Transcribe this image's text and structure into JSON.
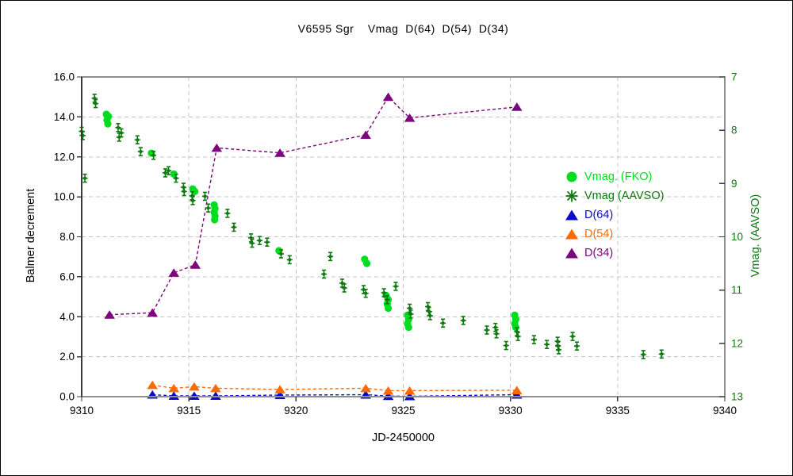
{
  "chart_data": {
    "type": "scatter",
    "title": "V6595 Sgr    Vmag  D(64)  D(54)  D(34)",
    "x_axis": {
      "label": "JD-2450000",
      "min": 9310,
      "max": 9340,
      "ticks": [
        9310,
        9315,
        9320,
        9325,
        9330,
        9335,
        9340
      ],
      "tick_labels": [
        "9310",
        "9315",
        "9320",
        "9325",
        "9330",
        "9335",
        "9340"
      ]
    },
    "y_left_axis": {
      "label": "Balmer decrement",
      "min": 0,
      "max": 16,
      "ticks": [
        16,
        14,
        12,
        10,
        8,
        6,
        4,
        2,
        0
      ],
      "tick_labels": [
        "16.0",
        "14.0",
        "12.0",
        "10.0",
        "8.0",
        "6.0",
        "4.0",
        "2.0",
        "0.0"
      ]
    },
    "y_right_axis": {
      "label": "Vmag. (AAVSO)",
      "min": 7,
      "max": 13,
      "inverted_magnitude_scale": true,
      "ticks": [
        7,
        8,
        9,
        10,
        11,
        12,
        13
      ],
      "tick_labels": [
        "7",
        "8",
        "9",
        "10",
        "11",
        "12",
        "13"
      ]
    },
    "grid": {
      "horizontal_left_values": [
        2,
        4,
        6,
        8,
        10,
        12,
        14
      ],
      "vertical_x_values": [
        9315,
        9320,
        9325,
        9330,
        9335
      ],
      "style": "dashed"
    },
    "colors": {
      "fko_green": "#00dd1e",
      "aavso_green": "#0e780e",
      "d64_blue": "#0a0ccd",
      "d54_orange": "#ff6a00",
      "d34_purple": "#7c067c",
      "grid": "#c4c4c4",
      "frame": "#8f8f8f",
      "axis_dark": "#3a3a3a",
      "text": "#000000"
    },
    "series": [
      {
        "id": "vmag-fko",
        "name": "Vmag. (FKO)",
        "axis": "right",
        "marker": "circle",
        "color": "#00dd1e",
        "line": "none",
        "points": [
          [
            9311.15,
            7.7
          ],
          [
            9311.25,
            7.74
          ],
          [
            9311.18,
            7.81
          ],
          [
            9311.22,
            7.88
          ],
          [
            9313.25,
            8.43
          ],
          [
            9314.3,
            8.82
          ],
          [
            9315.18,
            9.1
          ],
          [
            9315.28,
            9.15
          ],
          [
            9316.18,
            9.4
          ],
          [
            9316.22,
            9.47
          ],
          [
            9316.18,
            9.54
          ],
          [
            9316.22,
            9.61
          ],
          [
            9316.2,
            9.68
          ],
          [
            9319.2,
            10.26
          ],
          [
            9323.2,
            10.42
          ],
          [
            9323.3,
            10.5
          ],
          [
            9324.2,
            11.1
          ],
          [
            9324.3,
            11.18
          ],
          [
            9324.25,
            11.26
          ],
          [
            9324.3,
            11.34
          ],
          [
            9325.2,
            11.47
          ],
          [
            9325.25,
            11.55
          ],
          [
            9325.2,
            11.63
          ],
          [
            9325.25,
            11.7
          ],
          [
            9330.2,
            11.47
          ],
          [
            9330.25,
            11.55
          ],
          [
            9330.2,
            11.63
          ],
          [
            9330.25,
            11.7
          ]
        ]
      },
      {
        "id": "vmag-aavso",
        "name": "Vmag (AAVSO)",
        "axis": "right",
        "marker": "asterisk",
        "color": "#0e780e",
        "line": "none",
        "points": [
          [
            9310.0,
            8.02
          ],
          [
            9310.05,
            8.1
          ],
          [
            9310.15,
            8.9
          ],
          [
            9310.6,
            7.4
          ],
          [
            9310.65,
            7.5
          ],
          [
            9311.7,
            7.95
          ],
          [
            9311.75,
            8.13
          ],
          [
            9311.85,
            8.05
          ],
          [
            9312.6,
            8.18
          ],
          [
            9312.75,
            8.4
          ],
          [
            9313.35,
            8.47
          ],
          [
            9313.9,
            8.8
          ],
          [
            9314.05,
            8.76
          ],
          [
            9314.4,
            8.9
          ],
          [
            9314.75,
            9.07
          ],
          [
            9314.78,
            9.15
          ],
          [
            9315.15,
            9.23
          ],
          [
            9315.18,
            9.32
          ],
          [
            9315.75,
            9.24
          ],
          [
            9315.9,
            9.46
          ],
          [
            9316.8,
            9.56
          ],
          [
            9317.1,
            9.82
          ],
          [
            9317.9,
            10.02
          ],
          [
            9317.95,
            10.12
          ],
          [
            9318.3,
            10.07
          ],
          [
            9318.65,
            10.1
          ],
          [
            9319.3,
            10.32
          ],
          [
            9319.7,
            10.43
          ],
          [
            9321.3,
            10.7
          ],
          [
            9321.6,
            10.37
          ],
          [
            9322.15,
            10.87
          ],
          [
            9322.25,
            10.96
          ],
          [
            9323.15,
            10.99
          ],
          [
            9323.25,
            11.06
          ],
          [
            9324.1,
            11.05
          ],
          [
            9324.25,
            11.18
          ],
          [
            9324.65,
            10.93
          ],
          [
            9325.3,
            11.34
          ],
          [
            9325.35,
            11.45
          ],
          [
            9326.15,
            11.31
          ],
          [
            9326.2,
            11.4
          ],
          [
            9326.25,
            11.48
          ],
          [
            9326.85,
            11.62
          ],
          [
            9327.8,
            11.57
          ],
          [
            9328.9,
            11.75
          ],
          [
            9329.3,
            11.7
          ],
          [
            9329.35,
            11.82
          ],
          [
            9329.8,
            12.04
          ],
          [
            9330.3,
            11.78
          ],
          [
            9330.35,
            11.87
          ],
          [
            9331.1,
            11.93
          ],
          [
            9331.7,
            12.02
          ],
          [
            9332.2,
            11.96
          ],
          [
            9332.22,
            12.05
          ],
          [
            9332.25,
            12.12
          ],
          [
            9332.9,
            11.87
          ],
          [
            9333.1,
            12.05
          ],
          [
            9336.2,
            12.21
          ],
          [
            9337.05,
            12.2
          ]
        ]
      },
      {
        "id": "d64",
        "name": "D(64)",
        "axis": "left",
        "marker": "triangle",
        "color": "#0a0ccd",
        "line": "dashed",
        "points": [
          [
            9313.3,
            0.1
          ],
          [
            9314.3,
            0.04
          ],
          [
            9315.25,
            0.04
          ],
          [
            9316.25,
            0.04
          ],
          [
            9319.25,
            0.08
          ],
          [
            9323.25,
            0.1
          ],
          [
            9324.3,
            0.03
          ],
          [
            9325.3,
            0.02
          ],
          [
            9330.3,
            0.1
          ]
        ]
      },
      {
        "id": "d54",
        "name": "D(54)",
        "axis": "left",
        "marker": "triangle",
        "color": "#ff6a00",
        "line": "dashed",
        "points": [
          [
            9313.3,
            0.58
          ],
          [
            9314.3,
            0.42
          ],
          [
            9315.25,
            0.5
          ],
          [
            9316.25,
            0.42
          ],
          [
            9319.25,
            0.36
          ],
          [
            9323.25,
            0.42
          ],
          [
            9324.3,
            0.3
          ],
          [
            9325.3,
            0.3
          ],
          [
            9330.3,
            0.32
          ]
        ]
      },
      {
        "id": "d34",
        "name": "D(34)",
        "axis": "left",
        "marker": "triangle",
        "color": "#7c067c",
        "line": "dashed",
        "points": [
          [
            9311.3,
            4.1
          ],
          [
            9313.3,
            4.2
          ],
          [
            9314.3,
            6.2
          ],
          [
            9315.3,
            6.6
          ],
          [
            9316.3,
            12.45
          ],
          [
            9319.25,
            12.2
          ],
          [
            9323.25,
            13.1
          ],
          [
            9324.3,
            15.0
          ],
          [
            9325.3,
            13.95
          ],
          [
            9330.3,
            14.5
          ]
        ]
      }
    ],
    "legend_position": "inside-right"
  },
  "legend": {
    "items": [
      {
        "marker": "circle",
        "series": 0
      },
      {
        "marker": "asterisk",
        "series": 1
      },
      {
        "marker": "triangle",
        "series": 2
      },
      {
        "marker": "triangle",
        "series": 3
      },
      {
        "marker": "triangle",
        "series": 4
      }
    ]
  }
}
